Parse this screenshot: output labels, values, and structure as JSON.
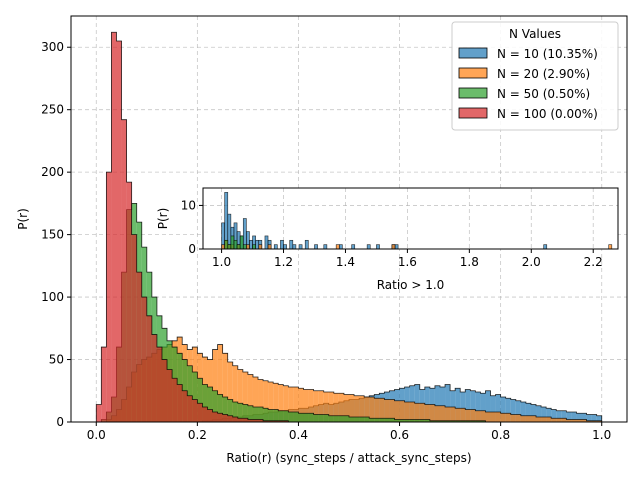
{
  "chart_data": [
    {
      "type": "histogram",
      "xlabel": "Ratio(r) (sync_steps / attack_sync_steps)",
      "ylabel": "P(r)",
      "xlim": [
        -0.05,
        1.05
      ],
      "ylim": [
        0,
        325
      ],
      "xticks": [
        0.0,
        0.2,
        0.4,
        0.6,
        0.8,
        1.0
      ],
      "yticks": [
        0,
        50,
        100,
        150,
        200,
        250,
        300
      ],
      "grid": true,
      "legend": {
        "title": "N Values",
        "placement": "top-right"
      },
      "bin_width": 0.01,
      "bin_start": 0.0,
      "series": [
        {
          "name": "N = 10 (10.35%)",
          "color": "#1f77b4",
          "values": [
            0,
            0,
            0,
            0,
            0,
            0,
            0,
            0,
            0,
            0,
            0,
            0,
            0,
            0,
            0,
            0,
            0,
            0,
            0,
            0,
            0,
            1,
            1,
            2,
            2,
            3,
            3,
            4,
            4,
            5,
            5,
            6,
            6,
            7,
            8,
            8,
            9,
            9,
            10,
            10,
            11,
            11,
            12,
            13,
            14,
            15,
            14,
            15,
            16,
            17,
            18,
            18,
            19,
            20,
            21,
            22,
            23,
            24,
            25,
            26,
            27,
            28,
            29,
            30,
            26,
            28,
            27,
            29,
            28,
            30,
            25,
            27,
            24,
            26,
            25,
            24,
            23,
            25,
            21,
            22,
            20,
            19,
            18,
            17,
            16,
            15,
            14,
            13,
            12,
            11,
            10,
            9,
            9,
            8,
            8,
            7,
            7,
            6,
            6,
            5
          ]
        },
        {
          "name": "N = 20 (2.90%)",
          "color": "#ff7f0e",
          "values": [
            0,
            0,
            2,
            5,
            10,
            18,
            28,
            40,
            46,
            50,
            52,
            55,
            58,
            60,
            62,
            65,
            68,
            62,
            58,
            60,
            55,
            52,
            50,
            58,
            62,
            55,
            48,
            45,
            42,
            40,
            38,
            36,
            34,
            33,
            32,
            31,
            30,
            29,
            28,
            28,
            27,
            26,
            26,
            25,
            25,
            24,
            24,
            23,
            23,
            22,
            22,
            21,
            21,
            20,
            20,
            19,
            19,
            18,
            18,
            17,
            17,
            16,
            16,
            15,
            15,
            14,
            14,
            13,
            13,
            12,
            12,
            11,
            11,
            10,
            10,
            9,
            9,
            8,
            8,
            8,
            7,
            7,
            6,
            6,
            5,
            5,
            5,
            4,
            4,
            4,
            3,
            3,
            3,
            2,
            2,
            2,
            2,
            1,
            1,
            1
          ]
        },
        {
          "name": "N = 50 (0.50%)",
          "color": "#2ca02c",
          "values": [
            0,
            2,
            8,
            20,
            60,
            120,
            170,
            175,
            160,
            140,
            120,
            100,
            85,
            75,
            65,
            60,
            55,
            50,
            45,
            40,
            35,
            30,
            28,
            25,
            22,
            20,
            18,
            16,
            15,
            14,
            13,
            12,
            12,
            11,
            10,
            10,
            9,
            9,
            8,
            8,
            7,
            7,
            7,
            6,
            6,
            6,
            5,
            5,
            5,
            5,
            4,
            4,
            4,
            4,
            3,
            3,
            3,
            3,
            3,
            2,
            2,
            2,
            2,
            2,
            2,
            2,
            1,
            1,
            1,
            1,
            1,
            1,
            1,
            1,
            1,
            1,
            1,
            0,
            0,
            0,
            0,
            0,
            0,
            0,
            0,
            0,
            0,
            0,
            0,
            0,
            0,
            0,
            0,
            0,
            0,
            0,
            0,
            0,
            0,
            0
          ]
        },
        {
          "name": "N = 100 (0.00%)",
          "color": "#d62728",
          "values": [
            14,
            60,
            200,
            312,
            305,
            242,
            192,
            150,
            120,
            100,
            85,
            70,
            60,
            50,
            42,
            35,
            30,
            25,
            21,
            18,
            15,
            12,
            10,
            8,
            7,
            6,
            5,
            4,
            3,
            3,
            2,
            2,
            2,
            1,
            1,
            1,
            1,
            1,
            0,
            0,
            0,
            0,
            0,
            0,
            0,
            0,
            0,
            0,
            0,
            0,
            0,
            0,
            0,
            0,
            0,
            0,
            0,
            0,
            0,
            0,
            0,
            0,
            0,
            0,
            0,
            0,
            0,
            0,
            0,
            0,
            0,
            0,
            0,
            0,
            0,
            0,
            0,
            0,
            0,
            0,
            0,
            0,
            0,
            0,
            0,
            0,
            0,
            0,
            0,
            0,
            0,
            0,
            0,
            0,
            0,
            0,
            0,
            0,
            0,
            0
          ]
        }
      ]
    },
    {
      "type": "histogram",
      "xlabel": "Ratio > 1.0",
      "ylabel": "P(r)",
      "xlim": [
        0.94,
        2.28
      ],
      "ylim": [
        0,
        14
      ],
      "xticks": [
        1.0,
        1.2,
        1.4,
        1.6,
        1.8,
        2.0,
        2.2
      ],
      "yticks": [
        0,
        10
      ],
      "grid": true,
      "bin_width": 0.01,
      "series": [
        {
          "name": "N = 10 (10.35%)",
          "color": "#1f77b4",
          "x": [
            1.0,
            1.01,
            1.02,
            1.03,
            1.04,
            1.05,
            1.06,
            1.07,
            1.08,
            1.09,
            1.1,
            1.11,
            1.12,
            1.14,
            1.15,
            1.17,
            1.19,
            1.2,
            1.22,
            1.23,
            1.25,
            1.27,
            1.3,
            1.33,
            1.38,
            1.42,
            1.47,
            1.5,
            1.55,
            1.56,
            2.04
          ],
          "values": [
            6,
            13,
            8,
            5,
            6,
            4,
            3,
            7,
            4,
            2,
            3,
            2,
            2,
            3,
            2,
            1,
            2,
            1,
            2,
            1,
            1,
            2,
            1,
            1,
            1,
            1,
            1,
            1,
            1,
            1,
            1
          ]
        },
        {
          "name": "N = 20 (2.90%)",
          "color": "#ff7f0e",
          "x": [
            1.0,
            1.01,
            1.02,
            1.03,
            1.05,
            1.08,
            1.12,
            1.15,
            1.37,
            1.55,
            2.25
          ],
          "values": [
            1,
            2,
            1,
            1,
            1,
            1,
            1,
            1,
            1,
            1,
            1
          ]
        },
        {
          "name": "N = 50 (0.50%)",
          "color": "#2ca02c",
          "x": [
            1.01,
            1.02,
            1.03,
            1.04,
            1.05,
            1.06,
            1.07,
            1.1
          ],
          "values": [
            2,
            1,
            3,
            2,
            1,
            3,
            1,
            1
          ]
        },
        {
          "name": "N = 100 (0.00%)",
          "color": "#d62728",
          "x": [],
          "values": []
        }
      ]
    }
  ]
}
